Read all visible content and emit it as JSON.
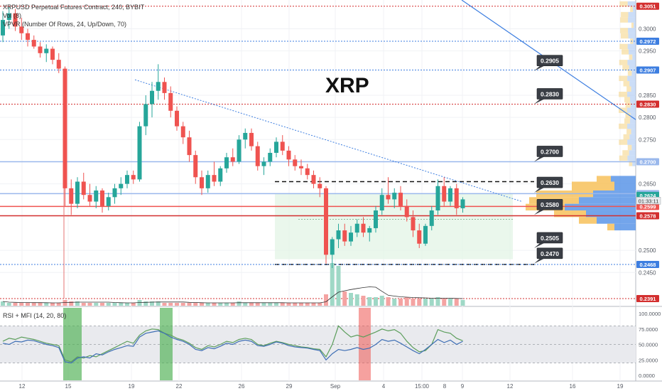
{
  "header": {
    "symbol_line": "XRPUSD Perpetual Futures Contract, 240, BYBIT",
    "vol_line": "Vol (8)",
    "vpvr_line": "VPVR (Number Of Rows, 24, Up/Down, 70)",
    "big_title": "XRP"
  },
  "indicator": {
    "label": "RSI + MFI (14, 20, 80)",
    "ticks": [
      "100.0000",
      "75.0000",
      "50.0000",
      "25.0000",
      "0.0000"
    ],
    "tick_values": [
      100,
      75,
      50,
      25,
      0
    ]
  },
  "chart_data": {
    "type": "candlestick",
    "price_ticks": [
      "0.3000",
      "0.2950",
      "0.2850",
      "0.2800",
      "0.2750",
      "0.2650",
      "0.2500",
      "0.2450"
    ],
    "price_tick_values": [
      0.3,
      0.295,
      0.285,
      0.28,
      0.275,
      0.265,
      0.25,
      0.245
    ],
    "x_ticks": [
      "12",
      "15",
      "19",
      "22",
      "26",
      "29",
      "Sep",
      "4",
      "8",
      "15:00",
      "9",
      "12",
      "16",
      "19"
    ],
    "ylim": [
      0.2375,
      0.3065
    ],
    "levels": [
      {
        "price": 0.3051,
        "label": "0.3051",
        "color": "#d32f2f",
        "style": "dotted"
      },
      {
        "price": 0.2972,
        "label": "0.2972",
        "color": "#3d7ee0",
        "style": "dotted"
      },
      {
        "price": 0.2907,
        "label": "0.2907",
        "color": "#3d7ee0",
        "style": "dotted"
      },
      {
        "price": 0.283,
        "label": "0.2830",
        "color": "#d32f2f",
        "style": "dotted"
      },
      {
        "price": 0.27,
        "label": "0.2700",
        "color": "#9ab8ec",
        "style": "solid"
      },
      {
        "price": 0.2628,
        "label": "0.2628",
        "color": "#9ab8ec",
        "style": "solid"
      },
      {
        "price": 0.2624,
        "label": "0.2624",
        "color": "#26a69a",
        "style": "none"
      },
      {
        "price": 0.2599,
        "label": "0.2599",
        "color": "#ef5350",
        "style": "solid"
      },
      {
        "price": 0.2578,
        "label": "0.2578",
        "color": "#d32f2f",
        "style": "solid"
      },
      {
        "price": 0.2468,
        "label": "0.2468",
        "color": "#3d7ee0",
        "style": "dotted"
      },
      {
        "price": 0.2391,
        "label": "0.2391",
        "color": "#d32f2f",
        "style": "dotted"
      }
    ],
    "callouts": [
      "0.2905",
      "0.2830",
      "0.2700",
      "0.2630",
      "0.2580",
      "0.2505",
      "0.2470"
    ],
    "callout_prices": [
      0.2905,
      0.283,
      0.27,
      0.263,
      0.258,
      0.2505,
      0.247
    ],
    "countdown": "01:33:11",
    "candles": [
      [
        0.2985,
        0.304,
        0.297,
        0.302
      ],
      [
        0.302,
        0.305,
        0.3,
        0.3035
      ],
      [
        0.3035,
        0.3045,
        0.2995,
        0.3005
      ],
      [
        0.3005,
        0.3025,
        0.2975,
        0.299
      ],
      [
        0.299,
        0.3,
        0.296,
        0.2975
      ],
      [
        0.2975,
        0.2985,
        0.2955,
        0.296
      ],
      [
        0.296,
        0.297,
        0.2935,
        0.2945
      ],
      [
        0.2945,
        0.2965,
        0.2925,
        0.2955
      ],
      [
        0.2955,
        0.296,
        0.292,
        0.293
      ],
      [
        0.293,
        0.2945,
        0.29,
        0.291
      ],
      [
        0.291,
        0.2915,
        0.26,
        0.264
      ],
      [
        0.264,
        0.266,
        0.258,
        0.2605
      ],
      [
        0.2605,
        0.2665,
        0.2595,
        0.2655
      ],
      [
        0.2655,
        0.2675,
        0.2615,
        0.2625
      ],
      [
        0.2625,
        0.265,
        0.26,
        0.261
      ],
      [
        0.261,
        0.2645,
        0.2595,
        0.2635
      ],
      [
        0.2635,
        0.264,
        0.2585,
        0.26
      ],
      [
        0.26,
        0.263,
        0.259,
        0.262
      ],
      [
        0.262,
        0.265,
        0.2605,
        0.264
      ],
      [
        0.264,
        0.2665,
        0.2625,
        0.265
      ],
      [
        0.265,
        0.268,
        0.264,
        0.267
      ],
      [
        0.267,
        0.268,
        0.265,
        0.266
      ],
      [
        0.266,
        0.279,
        0.2655,
        0.278
      ],
      [
        0.278,
        0.285,
        0.276,
        0.283
      ],
      [
        0.283,
        0.288,
        0.28,
        0.286
      ],
      [
        0.286,
        0.292,
        0.284,
        0.288
      ],
      [
        0.288,
        0.289,
        0.284,
        0.2855
      ],
      [
        0.2855,
        0.287,
        0.28,
        0.2815
      ],
      [
        0.2815,
        0.2825,
        0.277,
        0.278
      ],
      [
        0.278,
        0.279,
        0.274,
        0.2755
      ],
      [
        0.2755,
        0.277,
        0.27,
        0.2715
      ],
      [
        0.2715,
        0.2725,
        0.265,
        0.2665
      ],
      [
        0.2665,
        0.268,
        0.2625,
        0.264
      ],
      [
        0.264,
        0.268,
        0.263,
        0.267
      ],
      [
        0.267,
        0.27,
        0.2645,
        0.2655
      ],
      [
        0.2655,
        0.269,
        0.2645,
        0.2685
      ],
      [
        0.2685,
        0.272,
        0.2675,
        0.271
      ],
      [
        0.271,
        0.273,
        0.269,
        0.27
      ],
      [
        0.27,
        0.276,
        0.2695,
        0.275
      ],
      [
        0.275,
        0.2775,
        0.273,
        0.2765
      ],
      [
        0.2765,
        0.2775,
        0.2725,
        0.2735
      ],
      [
        0.2735,
        0.2745,
        0.268,
        0.269
      ],
      [
        0.269,
        0.271,
        0.267,
        0.27
      ],
      [
        0.27,
        0.273,
        0.269,
        0.272
      ],
      [
        0.272,
        0.2755,
        0.271,
        0.2745
      ],
      [
        0.2745,
        0.276,
        0.2715,
        0.2725
      ],
      [
        0.2725,
        0.2735,
        0.269,
        0.2705
      ],
      [
        0.2705,
        0.2715,
        0.268,
        0.269
      ],
      [
        0.269,
        0.2705,
        0.267,
        0.2685
      ],
      [
        0.2685,
        0.2695,
        0.266,
        0.267
      ],
      [
        0.267,
        0.268,
        0.264,
        0.265
      ],
      [
        0.265,
        0.2665,
        0.262,
        0.264
      ],
      [
        0.264,
        0.2645,
        0.247,
        0.249
      ],
      [
        0.249,
        0.253,
        0.246,
        0.2525
      ],
      [
        0.2525,
        0.256,
        0.2505,
        0.2545
      ],
      [
        0.2545,
        0.256,
        0.251,
        0.252
      ],
      [
        0.252,
        0.2555,
        0.251,
        0.254
      ],
      [
        0.254,
        0.257,
        0.253,
        0.256
      ],
      [
        0.256,
        0.2575,
        0.253,
        0.254
      ],
      [
        0.254,
        0.2555,
        0.252,
        0.255
      ],
      [
        0.255,
        0.26,
        0.254,
        0.259
      ],
      [
        0.259,
        0.264,
        0.258,
        0.2625
      ],
      [
        0.2625,
        0.2665,
        0.2605,
        0.2615
      ],
      [
        0.2615,
        0.264,
        0.2595,
        0.263
      ],
      [
        0.263,
        0.2645,
        0.259,
        0.26
      ],
      [
        0.26,
        0.2615,
        0.2565,
        0.2575
      ],
      [
        0.2575,
        0.259,
        0.253,
        0.2545
      ],
      [
        0.2545,
        0.256,
        0.2505,
        0.2515
      ],
      [
        0.2515,
        0.256,
        0.251,
        0.2555
      ],
      [
        0.2555,
        0.26,
        0.2545,
        0.259
      ],
      [
        0.259,
        0.266,
        0.258,
        0.2645
      ],
      [
        0.2645,
        0.2665,
        0.26,
        0.261
      ],
      [
        0.261,
        0.2645,
        0.26,
        0.264
      ],
      [
        0.264,
        0.265,
        0.258,
        0.2595
      ],
      [
        0.2595,
        0.262,
        0.2585,
        0.2615
      ]
    ],
    "volumes": [
      3,
      2,
      2,
      2,
      2,
      2,
      2,
      2,
      2,
      2,
      4,
      3,
      3,
      2,
      2,
      2,
      2,
      2,
      2,
      2,
      2,
      2,
      4,
      3,
      3,
      3,
      2,
      2,
      2,
      2,
      2,
      2,
      2,
      2,
      2,
      2,
      2,
      2,
      3,
      2,
      2,
      2,
      2,
      2,
      2,
      2,
      2,
      2,
      2,
      2,
      2,
      2,
      8,
      30,
      28,
      10,
      9,
      8,
      7,
      6,
      6,
      7,
      6,
      5,
      5,
      6,
      5,
      5,
      5,
      5,
      6,
      5,
      5,
      5,
      4
    ],
    "rsi": [
      52,
      50,
      55,
      54,
      57,
      56,
      53,
      50,
      48,
      45,
      22,
      20,
      28,
      30,
      28,
      35,
      33,
      38,
      42,
      45,
      48,
      47,
      62,
      68,
      70,
      72,
      68,
      62,
      58,
      55,
      50,
      42,
      40,
      45,
      43,
      47,
      52,
      50,
      55,
      57,
      55,
      48,
      47,
      50,
      54,
      52,
      48,
      46,
      45,
      44,
      42,
      40,
      25,
      35,
      42,
      40,
      42,
      45,
      42,
      44,
      50,
      58,
      55,
      57,
      52,
      46,
      40,
      35,
      42,
      50,
      58,
      53,
      57,
      50,
      55
    ],
    "mfi": [
      55,
      60,
      58,
      62,
      60,
      58,
      55,
      52,
      50,
      48,
      25,
      22,
      30,
      28,
      32,
      30,
      35,
      40,
      45,
      50,
      55,
      52,
      65,
      72,
      75,
      74,
      68,
      65,
      60,
      57,
      52,
      45,
      42,
      48,
      46,
      50,
      55,
      53,
      58,
      60,
      58,
      50,
      48,
      52,
      55,
      53,
      50,
      48,
      46,
      45,
      43,
      42,
      30,
      50,
      80,
      70,
      62,
      65,
      62,
      66,
      70,
      75,
      72,
      74,
      68,
      55,
      45,
      38,
      40,
      50,
      74,
      70,
      68,
      60,
      56
    ]
  }
}
